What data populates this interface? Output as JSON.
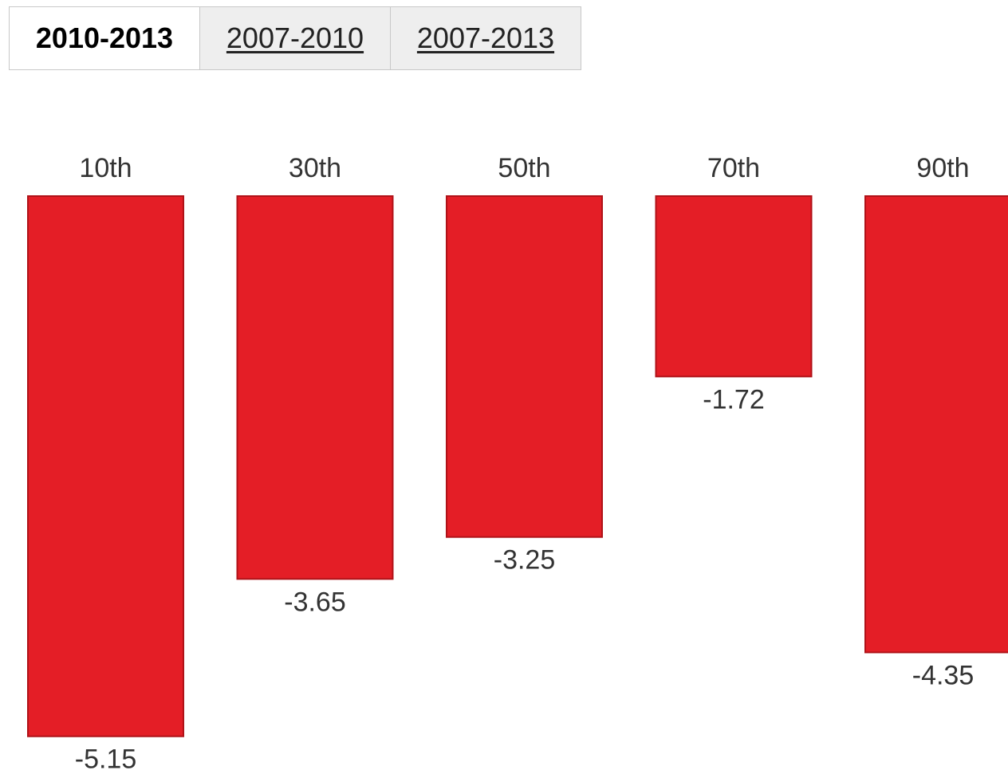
{
  "tabs": [
    {
      "label": "2010-2013",
      "active": true
    },
    {
      "label": "2007-2010",
      "active": false
    },
    {
      "label": "2007-2013",
      "active": false
    }
  ],
  "chart_data": {
    "type": "bar",
    "title": "",
    "xlabel": "",
    "ylabel": "",
    "categories": [
      "10th",
      "30th",
      "50th",
      "70th",
      "90th"
    ],
    "values": [
      -5.15,
      -3.65,
      -3.25,
      -1.72,
      -4.35
    ],
    "data_labels": [
      "-5.15",
      "-3.65",
      "-3.25",
      "-1.72",
      "-4.35"
    ],
    "category_label_position": "top",
    "grid": false,
    "legend": "none"
  },
  "colors": {
    "bar_fill": "#e41e26",
    "bar_stroke": "#b01218",
    "tab_inactive_bg": "#eeeeee",
    "tab_border": "#c8c8c8"
  }
}
